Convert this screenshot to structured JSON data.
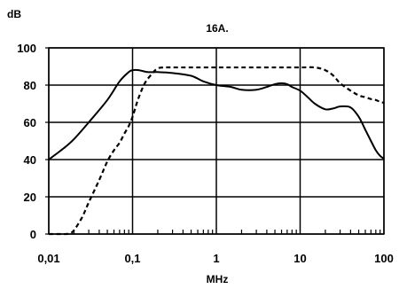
{
  "chart_data": {
    "type": "line",
    "title": "16A.",
    "xlabel": "MHz",
    "ylabel": "dB",
    "x_scale": "log",
    "xlim": [
      0.01,
      100
    ],
    "ylim": [
      0,
      100
    ],
    "grid": true,
    "x_ticks": [
      {
        "value": 0.01,
        "label": "0,01"
      },
      {
        "value": 0.1,
        "label": "0,1"
      },
      {
        "value": 1,
        "label": "1"
      },
      {
        "value": 10,
        "label": "10"
      },
      {
        "value": 100,
        "label": "100"
      }
    ],
    "y_ticks": [
      {
        "value": 0,
        "label": "0"
      },
      {
        "value": 20,
        "label": "20"
      },
      {
        "value": 40,
        "label": "40"
      },
      {
        "value": 60,
        "label": "60"
      },
      {
        "value": 80,
        "label": "80"
      },
      {
        "value": 100,
        "label": "100"
      }
    ],
    "series": [
      {
        "style": "solid",
        "color": "#000000",
        "x": [
          0.01,
          0.015,
          0.02,
          0.03,
          0.05,
          0.07,
          0.09,
          0.1,
          0.12,
          0.15,
          0.2,
          0.3,
          0.5,
          0.7,
          1,
          1.5,
          2,
          3,
          4,
          5,
          6,
          7,
          8,
          10,
          12,
          15,
          20,
          25,
          30,
          40,
          50,
          60,
          70,
          80,
          90,
          100
        ],
        "y": [
          40,
          46,
          51,
          60,
          72,
          82,
          87,
          88,
          88,
          87,
          87,
          86.5,
          85,
          82,
          80,
          79,
          77.5,
          77.5,
          79,
          80.5,
          81,
          80.5,
          79,
          77,
          74,
          70,
          67,
          67.5,
          68.5,
          68,
          63,
          56,
          50,
          45,
          42,
          40.5
        ]
      },
      {
        "style": "dashed",
        "color": "#000000",
        "x": [
          0.01,
          0.013,
          0.016,
          0.018,
          0.02,
          0.025,
          0.03,
          0.04,
          0.05,
          0.06,
          0.07,
          0.08,
          0.09,
          0.1,
          0.11,
          0.12,
          0.14,
          0.17,
          0.2,
          0.25,
          0.3,
          0.5,
          1,
          2,
          5,
          10,
          15,
          20,
          25,
          30,
          40,
          50,
          60,
          70,
          80,
          90,
          100
        ],
        "y": [
          0,
          0,
          0,
          0.5,
          2,
          9,
          17,
          29,
          39,
          45,
          49,
          54,
          58,
          63,
          69,
          74,
          81,
          86,
          89,
          89.5,
          89.5,
          89.5,
          89.5,
          89.5,
          89.5,
          89.5,
          89.5,
          88,
          85,
          81,
          77,
          74.5,
          73.5,
          72.5,
          72,
          71,
          70.5
        ]
      }
    ]
  }
}
